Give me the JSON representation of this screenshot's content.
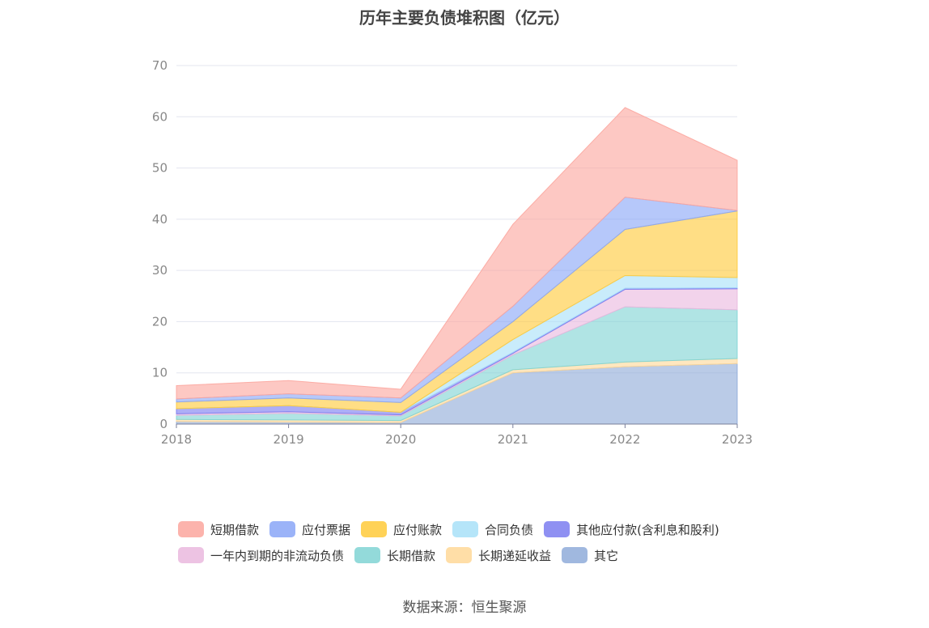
{
  "page": {
    "source_text": "数据来源：恒生聚源"
  },
  "chart_data": {
    "type": "area",
    "title": "历年主要负债堆积图（亿元）",
    "x": [
      "2018",
      "2019",
      "2020",
      "2021",
      "2022",
      "2023"
    ],
    "ylim": [
      0,
      70
    ],
    "yticks": [
      0,
      10,
      20,
      30,
      40,
      50,
      60,
      70
    ],
    "grid": true,
    "stacked": true,
    "legend_position": "bottom",
    "series": [
      {
        "name": "其它",
        "color": "#8fabd9",
        "values": [
          0.5,
          0.4,
          0.3,
          10.0,
          11.2,
          11.8
        ]
      },
      {
        "name": "长期递延收益",
        "color": "#ffd898",
        "values": [
          0.4,
          0.4,
          0.4,
          0.6,
          0.9,
          1.0
        ]
      },
      {
        "name": "长期借款",
        "color": "#80d4d4",
        "values": [
          0.8,
          1.3,
          0.9,
          2.9,
          10.8,
          9.5
        ]
      },
      {
        "name": "一年内到期的非流动负债",
        "color": "#eab8de",
        "values": [
          0.3,
          0.3,
          0.2,
          0.3,
          3.4,
          4.1
        ]
      },
      {
        "name": "其他应付款(含利息和股利)",
        "color": "#7b7cf0",
        "values": [
          1.0,
          1.2,
          0.5,
          0.2,
          0.2,
          0.2
        ]
      },
      {
        "name": "合同负债",
        "color": "#a8e0f8",
        "values": [
          0,
          0,
          0,
          2.5,
          2.5,
          2.0
        ]
      },
      {
        "name": "应付账款",
        "color": "#ffca3a",
        "values": [
          1.3,
          1.5,
          1.9,
          3.5,
          9.0,
          13.0
        ]
      },
      {
        "name": "应付票据",
        "color": "#89a6f7",
        "values": [
          0.6,
          0.8,
          0.9,
          3.0,
          6.3,
          0.1
        ]
      },
      {
        "name": "短期借款",
        "color": "#fca69e",
        "values": [
          2.6,
          2.6,
          1.7,
          16.0,
          17.5,
          9.8
        ]
      }
    ],
    "legend_order": [
      "短期借款",
      "应付票据",
      "应付账款",
      "合同负债",
      "其他应付款(含利息和股利)",
      "一年内到期的非流动负债",
      "长期借款",
      "长期递延收益",
      "其它"
    ]
  }
}
